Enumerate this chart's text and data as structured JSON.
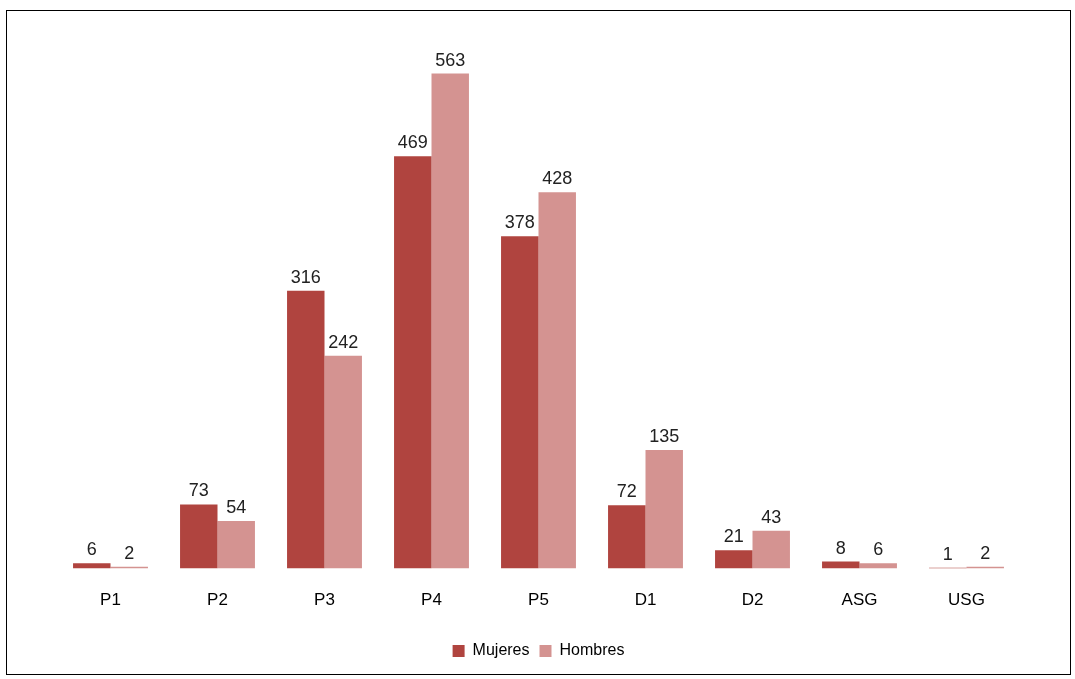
{
  "chart_data": {
    "type": "bar",
    "categories": [
      "P1",
      "P2",
      "P3",
      "P4",
      "P5",
      "D1",
      "D2",
      "ASG",
      "USG"
    ],
    "series": [
      {
        "name": "Mujeres",
        "color": "#b0443f",
        "values": [
          6,
          73,
          316,
          469,
          378,
          72,
          21,
          8,
          1
        ]
      },
      {
        "name": "Hombres",
        "color": "#d49391",
        "values": [
          2,
          54,
          242,
          563,
          428,
          135,
          43,
          6,
          2
        ]
      }
    ],
    "data_labels": true,
    "grid": false,
    "legend": "bottom"
  }
}
